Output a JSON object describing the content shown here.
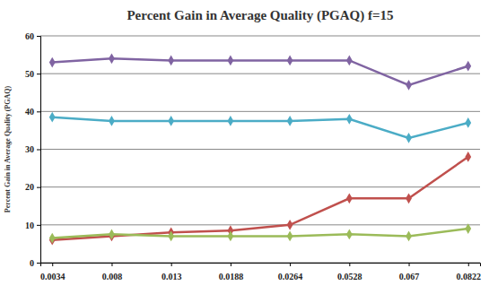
{
  "chart_data": {
    "type": "line",
    "title": "Percent Gain in Average Quality (PGAQ) f=15",
    "y_label": "Percent Gain in Average Quality (PGAQ)",
    "categories": [
      "0.0034",
      "0.008",
      "0.013",
      "0.0188",
      "0.0264",
      "0.0528",
      "0.067",
      "0.0822"
    ],
    "series": [
      {
        "color": "#8064a2",
        "values": [
          53,
          54,
          53.5,
          53.5,
          53.5,
          53.5,
          47,
          52
        ]
      },
      {
        "color": "#4bacc6",
        "values": [
          38.5,
          37.5,
          37.5,
          37.5,
          37.5,
          38,
          33,
          37
        ]
      },
      {
        "color": "#c0504d",
        "values": [
          6,
          7,
          8,
          8.5,
          10,
          17,
          17,
          28
        ]
      },
      {
        "color": "#9bbb59",
        "values": [
          6.5,
          7.5,
          7,
          7,
          7,
          7.5,
          7,
          9
        ]
      }
    ],
    "ylim": [
      0,
      60
    ],
    "yticks": [
      0,
      10,
      20,
      30,
      40,
      50,
      60
    ],
    "grid": true,
    "marker": "diamond",
    "line_style": "solid"
  }
}
